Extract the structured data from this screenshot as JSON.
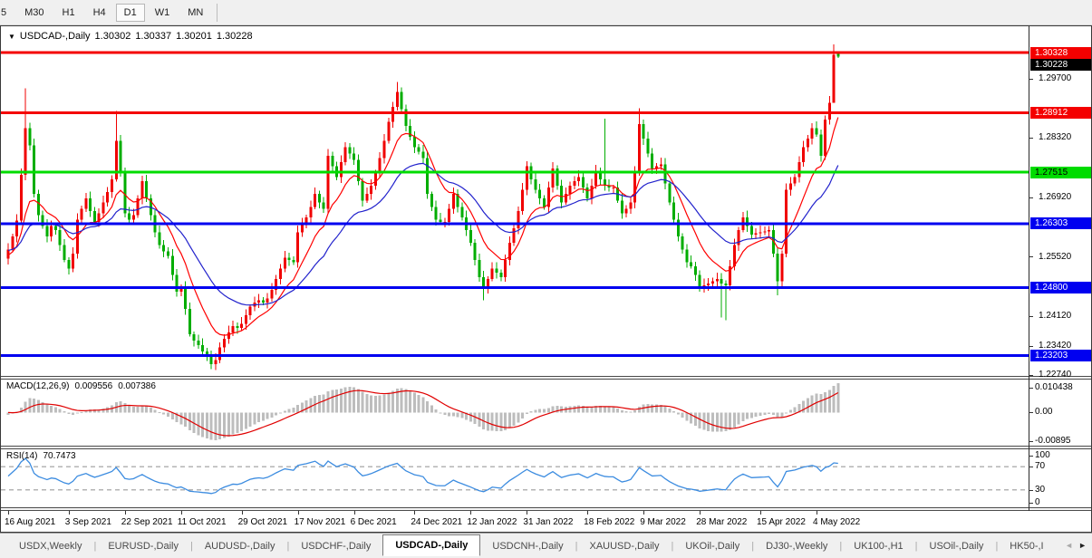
{
  "toolbar": {
    "timeframes": [
      {
        "label": "5",
        "active": false
      },
      {
        "label": "M30",
        "active": false
      },
      {
        "label": "H1",
        "active": false
      },
      {
        "label": "H4",
        "active": false
      },
      {
        "label": "D1",
        "active": true
      },
      {
        "label": "W1",
        "active": false
      },
      {
        "label": "MN",
        "active": false
      }
    ]
  },
  "chart": {
    "title": {
      "dropdown_icon": "▼",
      "symbol": "USDCAD-,Daily",
      "open": "1.30302",
      "high": "1.30337",
      "low": "1.30201",
      "close": "1.30228"
    },
    "y_ticks": [
      {
        "label": "1.29700",
        "value": 1.297
      },
      {
        "label": "1.28320",
        "value": 1.2832
      },
      {
        "label": "1.26920",
        "value": 1.2692
      },
      {
        "label": "1.25520",
        "value": 1.2552
      },
      {
        "label": "1.24120",
        "value": 1.2412
      },
      {
        "label": "1.23420",
        "value": 1.2342
      },
      {
        "label": "1.22740",
        "value": 1.2274
      }
    ],
    "hlines": [
      {
        "label": "1.30328",
        "value": 1.30328,
        "color": "#f40000",
        "text_color": "#ffffff"
      },
      {
        "label": "1.28912",
        "value": 1.28912,
        "color": "#f40000",
        "text_color": "#ffffff"
      },
      {
        "label": "1.27515",
        "value": 1.27515,
        "color": "#00dc00",
        "text_color": "#000000"
      },
      {
        "label": "1.26303",
        "value": 1.26303,
        "color": "#0000f0",
        "text_color": "#ffffff"
      },
      {
        "label": "1.24800",
        "value": 1.248,
        "color": "#0000f0",
        "text_color": "#ffffff"
      },
      {
        "label": "1.23203",
        "value": 1.23203,
        "color": "#0000f0",
        "text_color": "#ffffff"
      }
    ],
    "current_price": {
      "label": "1.30228",
      "value": 1.30228,
      "bg": "#000000",
      "text_color": "#ffffff"
    },
    "x_labels": [
      {
        "label": "16 Aug 2021",
        "bar": 0
      },
      {
        "label": "3 Sep 2021",
        "bar": 14
      },
      {
        "label": "22 Sep 2021",
        "bar": 27
      },
      {
        "label": "11 Oct 2021",
        "bar": 40
      },
      {
        "label": "29 Oct 2021",
        "bar": 54
      },
      {
        "label": "17 Nov 2021",
        "bar": 67
      },
      {
        "label": "6 Dec 2021",
        "bar": 80
      },
      {
        "label": "24 Dec 2021",
        "bar": 94
      },
      {
        "label": "12 Jan 2022",
        "bar": 107
      },
      {
        "label": "31 Jan 2022",
        "bar": 120
      },
      {
        "label": "18 Feb 2022",
        "bar": 134
      },
      {
        "label": "9 Mar 2022",
        "bar": 147
      },
      {
        "label": "28 Mar 2022",
        "bar": 160
      },
      {
        "label": "15 Apr 2022",
        "bar": 174
      },
      {
        "label": "4 May 2022",
        "bar": 187
      }
    ]
  },
  "macd_panel": {
    "name": "MACD(12,26,9)",
    "main_value": "0.009556",
    "signal_value": "0.007386",
    "axis_top": "0.010438",
    "axis_zero": "0.00",
    "axis_bottom": "-0.00895"
  },
  "rsi_panel": {
    "name": "RSI(14)",
    "value": "70.7473",
    "axis": [
      "100",
      "70",
      "30",
      "0"
    ],
    "levels": [
      70,
      30
    ]
  },
  "tabs": {
    "items": [
      {
        "label": "USDX,Weekly",
        "active": false
      },
      {
        "label": "EURUSD-,Daily",
        "active": false
      },
      {
        "label": "AUDUSD-,Daily",
        "active": false
      },
      {
        "label": "USDCHF-,Daily",
        "active": false
      },
      {
        "label": "USDCAD-,Daily",
        "active": true
      },
      {
        "label": "USDCNH-,Daily",
        "active": false
      },
      {
        "label": "XAUUSD-,Daily",
        "active": false
      },
      {
        "label": "UKOil-,Daily",
        "active": false
      },
      {
        "label": "DJ30-,Weekly",
        "active": false
      },
      {
        "label": "UK100-,H1",
        "active": false
      },
      {
        "label": "USOil-,Daily",
        "active": false
      },
      {
        "label": "HK50-,I",
        "active": false
      }
    ],
    "scroll_left": "◄",
    "scroll_right": "►"
  },
  "chart_data": {
    "type": "candlestick",
    "symbol": "USDCAD",
    "timeframe": "Daily",
    "ohlc_current": {
      "open": 1.30302,
      "high": 1.30337,
      "low": 1.30201,
      "close": 1.30228
    },
    "first_open": 1.2548,
    "closes": [
      1.257,
      1.26,
      1.2638,
      1.2745,
      1.2855,
      1.2815,
      1.27,
      1.265,
      1.2625,
      1.26,
      1.2625,
      1.2615,
      1.258,
      1.2545,
      1.2525,
      1.256,
      1.264,
      1.2665,
      1.269,
      1.266,
      1.2635,
      1.2655,
      1.268,
      1.2705,
      1.2735,
      1.2825,
      1.2755,
      1.2655,
      1.264,
      1.265,
      1.269,
      1.273,
      1.269,
      1.265,
      1.261,
      1.258,
      1.2565,
      1.2555,
      1.251,
      1.247,
      1.248,
      1.243,
      1.237,
      1.2355,
      1.2345,
      1.233,
      1.232,
      1.23,
      1.231,
      1.234,
      1.236,
      1.2375,
      1.239,
      1.2385,
      1.2395,
      1.2415,
      1.2435,
      1.2445,
      1.245,
      1.2445,
      1.2455,
      1.2475,
      1.25,
      1.2525,
      1.255,
      1.2545,
      1.254,
      1.261,
      1.263,
      1.2645,
      1.267,
      1.27,
      1.268,
      1.2665,
      1.279,
      1.2765,
      1.274,
      1.2775,
      1.281,
      1.2795,
      1.278,
      1.273,
      1.2685,
      1.27,
      1.272,
      1.275,
      1.2785,
      1.2825,
      1.287,
      1.2905,
      1.294,
      1.29,
      1.286,
      1.2835,
      1.281,
      1.28,
      1.2785,
      1.27,
      1.267,
      1.264,
      1.2635,
      1.2635,
      1.2665,
      1.27,
      1.267,
      1.2645,
      1.2615,
      1.2585,
      1.2545,
      1.2505,
      1.248,
      1.25,
      1.2525,
      1.2515,
      1.2505,
      1.2545,
      1.2585,
      1.262,
      1.266,
      1.271,
      1.2765,
      1.2735,
      1.271,
      1.269,
      1.267,
      1.2715,
      1.276,
      1.272,
      1.268,
      1.27,
      1.272,
      1.273,
      1.274,
      1.2715,
      1.269,
      1.272,
      1.2755,
      1.2735,
      1.272,
      1.2715,
      1.2715,
      1.2685,
      1.2655,
      1.2665,
      1.268,
      1.275,
      1.2865,
      1.283,
      1.2795,
      1.276,
      1.2765,
      1.277,
      1.2725,
      1.268,
      1.264,
      1.26,
      1.257,
      1.254,
      1.253,
      1.251,
      1.248,
      1.2485,
      1.249,
      1.2495,
      1.25,
      1.249,
      1.2485,
      1.253,
      1.258,
      1.2615,
      1.2645,
      1.2625,
      1.2605,
      1.2608,
      1.261,
      1.2612,
      1.2615,
      1.256,
      1.2495,
      1.256,
      1.271,
      1.2725,
      1.274,
      1.2775,
      1.281,
      1.283,
      1.2855,
      1.284,
      1.279,
      1.2875,
      1.2915,
      1.3028,
      1.30228
    ],
    "wick_overrides": {
      "4": {
        "h": 1.2949
      },
      "25": {
        "h": 1.2895
      },
      "47": {
        "l": 1.2288
      },
      "90": {
        "h": 1.2964
      },
      "110": {
        "l": 1.245
      },
      "138": {
        "h": 1.2877
      },
      "146": {
        "h": 1.2902
      },
      "165": {
        "l": 1.241
      },
      "166": {
        "l": 1.2403
      },
      "178": {
        "l": 1.2462
      },
      "191": {
        "h": 1.3052,
        "l": 1.2918
      }
    },
    "last_bar": {
      "open": 1.30302,
      "high": 1.30337,
      "low": 1.30201,
      "close": 1.30228
    },
    "ma_warmup_closes": [
      1.228,
      1.232,
      1.236,
      1.24,
      1.245,
      1.25,
      1.256,
      1.262,
      1.268,
      1.273,
      1.277,
      1.274,
      1.268,
      1.262,
      1.258,
      1.2555,
      1.253,
      1.252,
      1.254,
      1.256
    ],
    "moving_averages": [
      {
        "name": "fast-ma",
        "period": 10,
        "color": "#ff0000"
      },
      {
        "name": "slow-ma",
        "period": 25,
        "color": "#2222cc"
      }
    ],
    "indicators": [
      {
        "name": "MACD",
        "params": [
          12,
          26,
          9
        ],
        "main": 0.009556,
        "signal": 0.007386,
        "axis_max": 0.010438,
        "axis_min": -0.00895,
        "hist_color": "#bdbdbd",
        "signal_color": "#e00000"
      },
      {
        "name": "RSI",
        "params": [
          14
        ],
        "value": 70.7473,
        "color": "#3c8ce0",
        "levels": [
          70,
          30
        ],
        "range": [
          0,
          100
        ]
      }
    ],
    "colors": {
      "bull": "#f00000",
      "bear": "#00ad00",
      "levels_dash": "#b4b4b4"
    }
  }
}
